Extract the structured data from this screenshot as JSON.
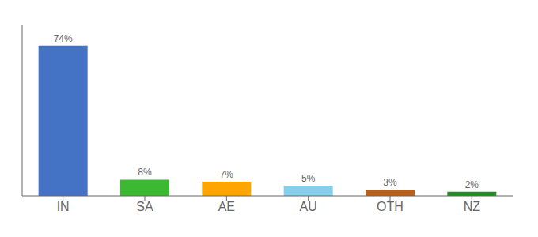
{
  "chart_data": {
    "type": "bar",
    "categories": [
      "IN",
      "SA",
      "AE",
      "AU",
      "OTH",
      "NZ"
    ],
    "values": [
      74,
      8,
      7,
      5,
      3,
      2
    ],
    "value_labels": [
      "74%",
      "8%",
      "7%",
      "5%",
      "3%",
      "2%"
    ],
    "data_labels": true,
    "colors": [
      "#4472C4",
      "#3CB832",
      "#FFA500",
      "#87CEEB",
      "#B8601A",
      "#228B22"
    ],
    "ylim": [
      0,
      84
    ],
    "tick_labels": "x",
    "grid": false
  }
}
